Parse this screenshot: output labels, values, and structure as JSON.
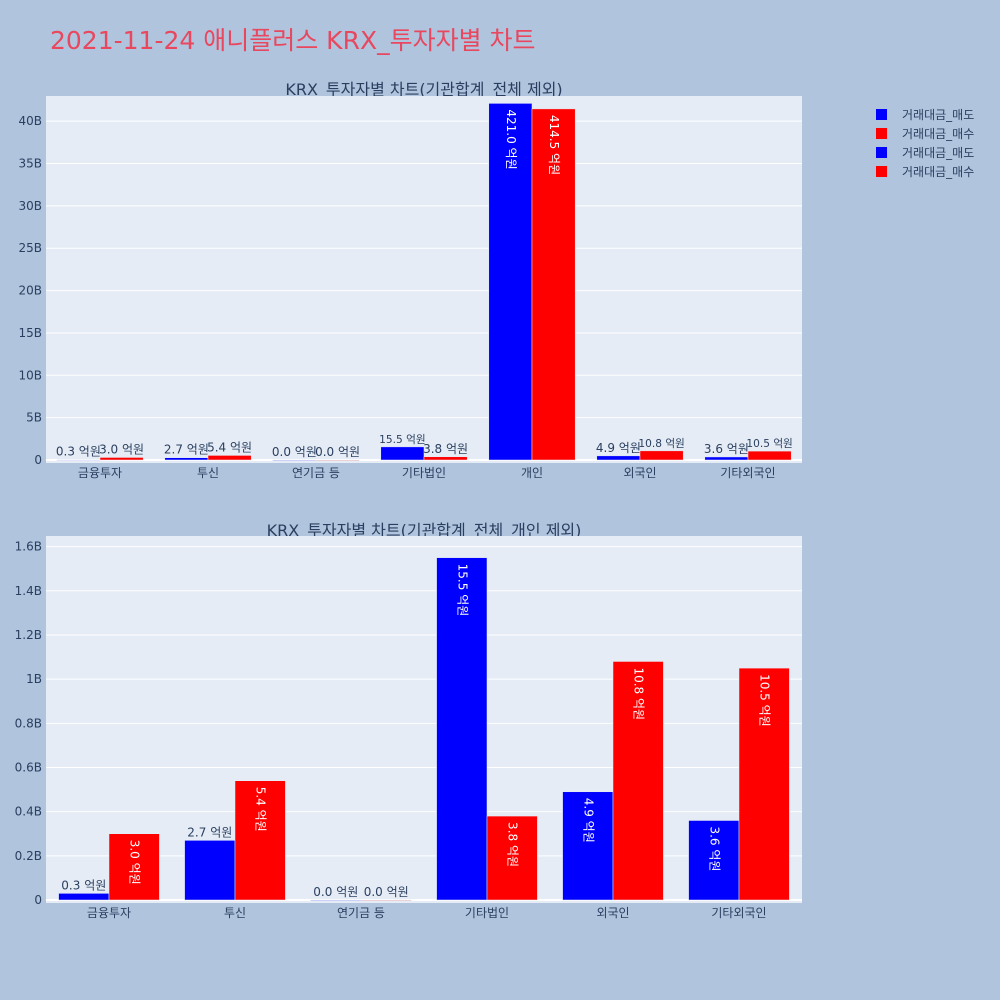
{
  "page": {
    "title": "2021-11-24 애니플러스 KRX_투자자별 차트"
  },
  "colors": {
    "page_bg": "#b0c4de",
    "plot_bg": "#e5ecf6",
    "title": "#e8475e",
    "text": "#2a3f5f",
    "sell": "#0000ff",
    "buy": "#ff0000"
  },
  "legend": {
    "position": "top-right",
    "items": [
      {
        "label": "거래대금_매도",
        "color": "#0000ff"
      },
      {
        "label": "거래대금_매수",
        "color": "#ff0000"
      },
      {
        "label": "거래대금_매도",
        "color": "#0000ff"
      },
      {
        "label": "거래대금_매수",
        "color": "#ff0000"
      }
    ]
  },
  "chart_data": [
    {
      "type": "bar",
      "title": "KRX_투자자별 차트(기관합계_전체 제외)",
      "categories": [
        "금융투자",
        "투신",
        "연기금 등",
        "기타법인",
        "개인",
        "외국인",
        "기타외국인"
      ],
      "ylim": [
        0,
        42500000000
      ],
      "yticks": [
        0,
        5000000000,
        10000000000,
        15000000000,
        20000000000,
        25000000000,
        30000000000,
        35000000000,
        40000000000
      ],
      "ytick_labels": [
        "0",
        "5B",
        "10B",
        "15B",
        "20B",
        "25B",
        "30B",
        "35B",
        "40B"
      ],
      "grid": true,
      "series": [
        {
          "name": "거래대금_매도",
          "color": "#0000ff",
          "values": [
            30000000,
            270000000,
            0,
            1550000000,
            42100000000,
            490000000,
            360000000
          ],
          "labels": [
            "0.3 억원",
            "2.7 억원",
            "0.0 억원",
            "15.5 억원",
            "421.0 억원",
            "4.9 억원",
            "3.6 억원"
          ]
        },
        {
          "name": "거래대금_매수",
          "color": "#ff0000",
          "values": [
            300000000,
            540000000,
            0,
            380000000,
            41450000000,
            1080000000,
            1050000000
          ],
          "labels": [
            "3.0 억원",
            "5.4 억원",
            "0.0 억원",
            "3.8 억원",
            "414.5 억원",
            "10.8 억원",
            "10.5 억원"
          ]
        }
      ]
    },
    {
      "type": "bar",
      "title": "KRX_투자자별 차트(기관합계_전체_개인 제외)",
      "categories": [
        "금융투자",
        "투신",
        "연기금 등",
        "기타법인",
        "외국인",
        "기타외국인"
      ],
      "ylim": [
        0,
        1630000000
      ],
      "yticks": [
        0,
        200000000,
        400000000,
        600000000,
        800000000,
        1000000000,
        1200000000,
        1400000000,
        1600000000
      ],
      "ytick_labels": [
        "0",
        "0.2B",
        "0.4B",
        "0.6B",
        "0.8B",
        "1B",
        "1.2B",
        "1.4B",
        "1.6B"
      ],
      "grid": true,
      "series": [
        {
          "name": "거래대금_매도",
          "color": "#0000ff",
          "values": [
            30000000,
            270000000,
            0,
            1550000000,
            490000000,
            360000000
          ],
          "labels": [
            "0.3 억원",
            "2.7 억원",
            "0.0 억원",
            "15.5 억원",
            "4.9 억원",
            "3.6 억원"
          ]
        },
        {
          "name": "거래대금_매수",
          "color": "#ff0000",
          "values": [
            300000000,
            540000000,
            0,
            380000000,
            1080000000,
            1050000000
          ],
          "labels": [
            "3.0 억원",
            "5.4 억원",
            "0.0 억원",
            "3.8 억원",
            "10.8 억원",
            "10.5 억원"
          ]
        }
      ]
    }
  ]
}
